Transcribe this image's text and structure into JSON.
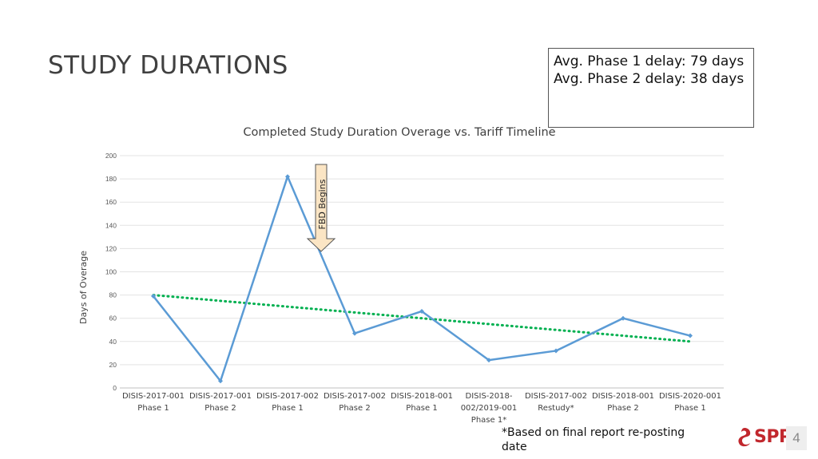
{
  "slide": {
    "title": "STUDY DURATIONS",
    "delay_box": {
      "line1": "Avg. Phase 1 delay: 79 days",
      "line2": "Avg. Phase 2 delay: 38 days"
    },
    "footnote": "*Based on final report re-posting date",
    "logo_text": "SPP",
    "page_number": "4"
  },
  "chart_data": {
    "type": "line",
    "title": "Completed Study Duration Overage vs. Tariff Timeline",
    "ylabel": "Days of Overage",
    "xlabel": "",
    "ylim": [
      0,
      200
    ],
    "yticks": [
      0,
      20,
      40,
      60,
      80,
      100,
      120,
      140,
      160,
      180,
      200
    ],
    "grid": true,
    "categories": [
      [
        "DISIS-2017-001",
        "Phase 1"
      ],
      [
        "DISIS-2017-001",
        "Phase 2"
      ],
      [
        "DISIS-2017-002",
        "Phase 1"
      ],
      [
        "DISIS-2017-002",
        "Phase 2"
      ],
      [
        "DISIS-2018-001",
        "Phase 1"
      ],
      [
        "DISIS-2018-",
        "002/2019-001",
        "Phase 1*"
      ],
      [
        "DISIS-2017-002",
        "Restudy*"
      ],
      [
        "DISIS-2018-001",
        "Phase 2"
      ],
      [
        "DISIS-2020-001",
        "Phase 1"
      ]
    ],
    "series": [
      {
        "values": [
          79,
          6,
          182,
          47,
          66,
          24,
          32,
          60,
          45
        ],
        "color": "#5b9bd5"
      }
    ],
    "trendline": {
      "style": "dotted",
      "color": "#00b050",
      "start": 80,
      "end": 40
    },
    "annotation": {
      "text": "FBD Begins",
      "between_categories": [
        2,
        3
      ],
      "fill": "#fbe5c4",
      "stroke": "#555555"
    }
  }
}
